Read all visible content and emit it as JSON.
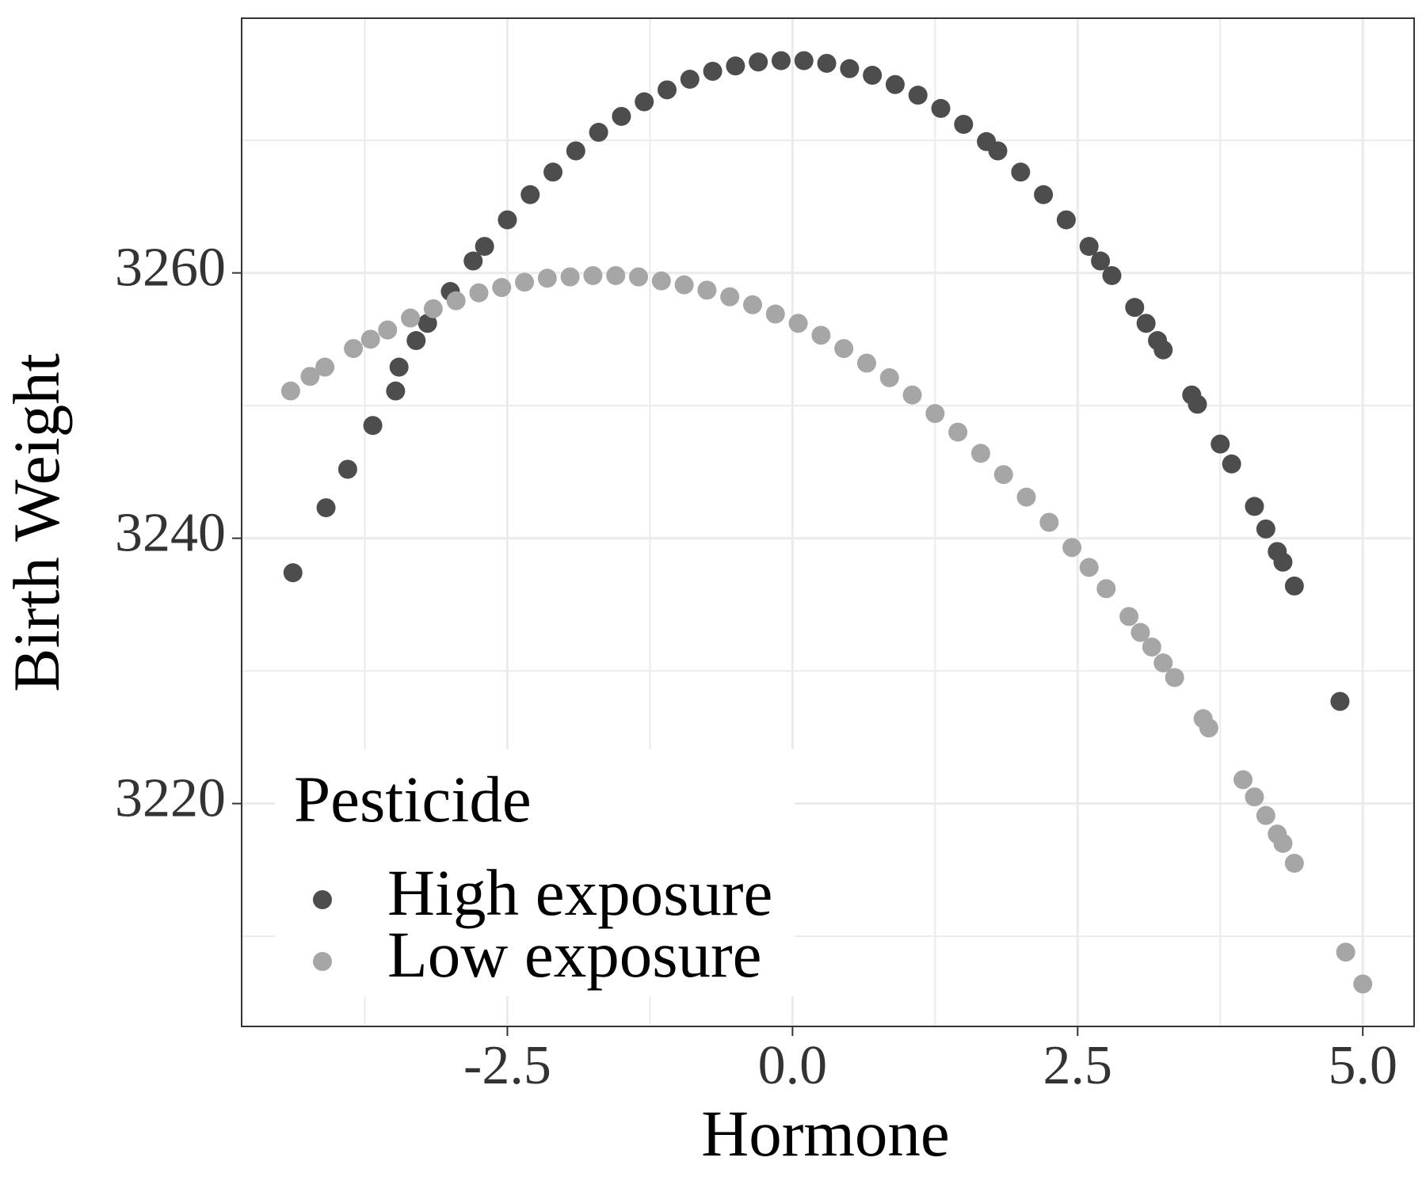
{
  "chart_data": {
    "type": "scatter",
    "x_label": "Hormone",
    "y_label": "Birth Weight",
    "xlim": [
      -4.83,
      5.45
    ],
    "ylim": [
      3203.2,
      3279.2
    ],
    "xticks": [
      {
        "value": -2.5,
        "label": "-2.5"
      },
      {
        "value": 0,
        "label": "0.0"
      },
      {
        "value": 2.5,
        "label": "2.5"
      },
      {
        "value": 5,
        "label": "5.0"
      }
    ],
    "yticks": [
      3220,
      3240,
      3260
    ],
    "x_minor_grid": [
      -3.75,
      -1.25,
      1.25,
      3.75
    ],
    "y_minor_grid": [
      3210,
      3230,
      3250,
      3270
    ],
    "grid": true,
    "legend_title": "Pesticide",
    "legend_position": "bottom-left",
    "series": [
      {
        "name": "High exposure",
        "color": "#4d4d4d",
        "x": [
          -4.38,
          -4.09,
          -3.9,
          -3.68,
          -3.48,
          -3.45,
          -3.3,
          -3.2,
          -3.0,
          -2.8,
          -2.7,
          -2.5,
          -2.3,
          -2.1,
          -1.9,
          -1.7,
          -1.5,
          -1.3,
          -1.1,
          -0.9,
          -0.7,
          -0.5,
          -0.3,
          -0.1,
          0.1,
          0.3,
          0.5,
          0.7,
          0.9,
          1.1,
          1.3,
          1.5,
          1.7,
          1.8,
          2.0,
          2.2,
          2.4,
          2.6,
          2.7,
          2.8,
          3.0,
          3.1,
          3.2,
          3.25,
          3.5,
          3.55,
          3.75,
          3.85,
          4.05,
          4.15,
          4.25,
          4.3,
          4.4,
          4.8
        ],
        "values": [
          3237.4,
          3242.3,
          3245.2,
          3248.5,
          3251.1,
          3252.9,
          3254.9,
          3256.2,
          3258.6,
          3260.9,
          3262.0,
          3264.0,
          3265.9,
          3267.6,
          3269.2,
          3270.6,
          3271.8,
          3272.9,
          3273.8,
          3274.6,
          3275.2,
          3275.6,
          3275.9,
          3276.0,
          3276.0,
          3275.8,
          3275.4,
          3274.9,
          3274.2,
          3273.4,
          3272.4,
          3271.2,
          3269.9,
          3269.2,
          3267.6,
          3265.9,
          3264.0,
          3262.0,
          3260.9,
          3259.8,
          3257.4,
          3256.2,
          3254.9,
          3254.2,
          3250.8,
          3250.1,
          3247.1,
          3245.6,
          3242.4,
          3240.7,
          3239.0,
          3238.2,
          3236.4,
          3227.7
        ]
      },
      {
        "name": "Low exposure",
        "color": "#a6a6a6",
        "x": [
          -4.4,
          -4.23,
          -4.1,
          -3.85,
          -3.7,
          -3.55,
          -3.35,
          -3.15,
          -2.95,
          -2.75,
          -2.55,
          -2.35,
          -2.15,
          -1.95,
          -1.75,
          -1.55,
          -1.35,
          -1.15,
          -0.95,
          -0.75,
          -0.55,
          -0.35,
          -0.15,
          0.05,
          0.25,
          0.45,
          0.65,
          0.85,
          1.05,
          1.25,
          1.45,
          1.65,
          1.85,
          2.05,
          2.25,
          2.45,
          2.6,
          2.75,
          2.95,
          3.05,
          3.15,
          3.25,
          3.35,
          3.6,
          3.65,
          3.95,
          4.05,
          4.15,
          4.25,
          4.3,
          4.4,
          4.85,
          5.0
        ],
        "values": [
          3251.1,
          3252.2,
          3252.9,
          3254.3,
          3255.0,
          3255.7,
          3256.6,
          3257.3,
          3257.9,
          3258.5,
          3258.9,
          3259.3,
          3259.6,
          3259.7,
          3259.8,
          3259.8,
          3259.7,
          3259.4,
          3259.1,
          3258.7,
          3258.2,
          3257.6,
          3256.9,
          3256.2,
          3255.3,
          3254.3,
          3253.2,
          3252.1,
          3250.8,
          3249.4,
          3248.0,
          3246.4,
          3244.8,
          3243.1,
          3241.2,
          3239.3,
          3237.8,
          3236.2,
          3234.1,
          3232.9,
          3231.8,
          3230.6,
          3229.5,
          3226.4,
          3225.7,
          3221.8,
          3220.5,
          3219.1,
          3217.7,
          3217.0,
          3215.5,
          3208.8,
          3206.4
        ]
      }
    ]
  }
}
